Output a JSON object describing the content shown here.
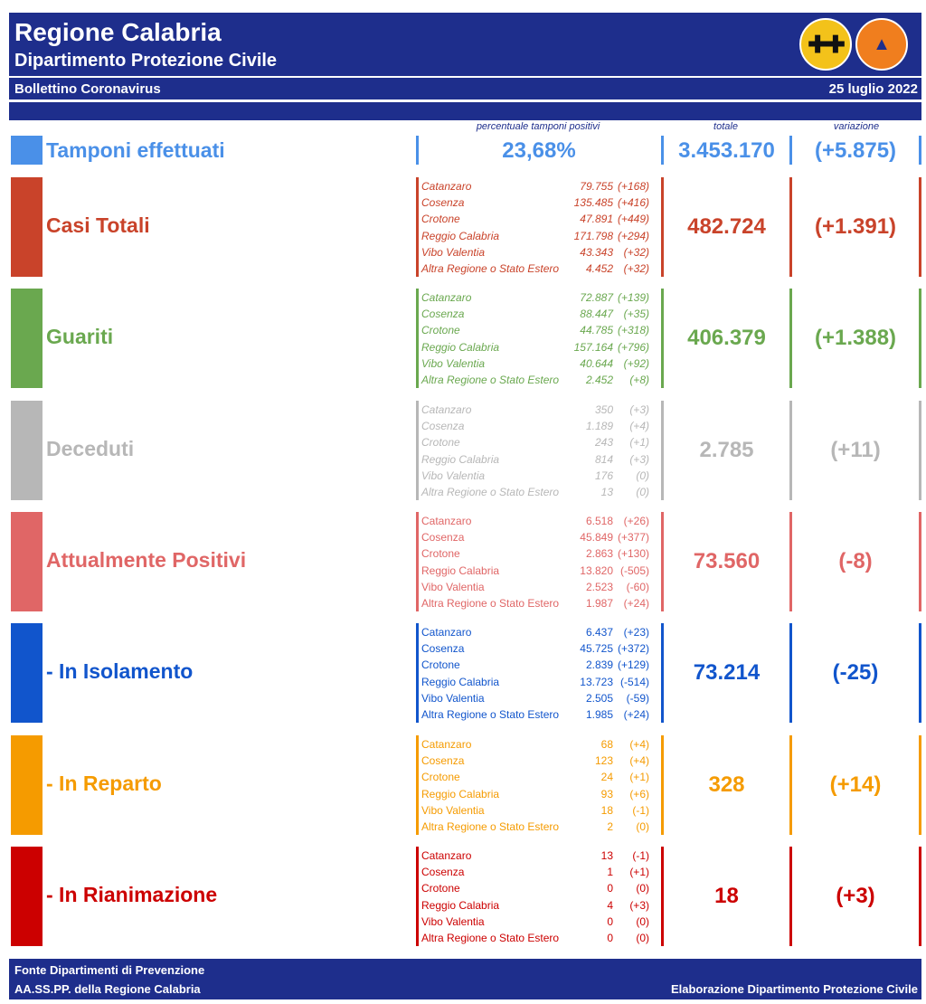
{
  "header": {
    "title": "Regione Calabria",
    "subtitle": "Dipartimento Protezione Civile",
    "bulletin": "Bollettino Coronavirus",
    "date": "25 luglio 2022",
    "logo_left": "regional-coat-of-arms",
    "logo_right": "protezione-civile-logo"
  },
  "columns": {
    "percent_label": "percentuale tamponi positivi",
    "total_label": "totale",
    "variation_label": "variazione"
  },
  "tamponi": {
    "label": "Tamponi effettuati",
    "percent": "23,68%",
    "total": "3.453.170",
    "variation": "(+5.875)",
    "color": "#4a90e8"
  },
  "sections": [
    {
      "label": "Casi Totali",
      "color": "#c9432a",
      "italic": true,
      "total": "482.724",
      "variation": "(+1.391)",
      "provinces": [
        {
          "name": "Catanzaro",
          "value": "79.755",
          "delta": "(+168)"
        },
        {
          "name": "Cosenza",
          "value": "135.485",
          "delta": "(+416)"
        },
        {
          "name": "Crotone",
          "value": "47.891",
          "delta": "(+449)"
        },
        {
          "name": "Reggio Calabria",
          "value": "171.798",
          "delta": "(+294)"
        },
        {
          "name": "Vibo Valentia",
          "value": "43.343",
          "delta": "(+32)"
        },
        {
          "name": "Altra Regione o Stato Estero",
          "value": "4.452",
          "delta": "(+32)"
        }
      ]
    },
    {
      "label": "Guariti",
      "color": "#6aa84f",
      "italic": true,
      "total": "406.379",
      "variation": "(+1.388)",
      "provinces": [
        {
          "name": "Catanzaro",
          "value": "72.887",
          "delta": "(+139)"
        },
        {
          "name": "Cosenza",
          "value": "88.447",
          "delta": "(+35)"
        },
        {
          "name": "Crotone",
          "value": "44.785",
          "delta": "(+318)"
        },
        {
          "name": "Reggio Calabria",
          "value": "157.164",
          "delta": "(+796)"
        },
        {
          "name": "Vibo Valentia",
          "value": "40.644",
          "delta": "(+92)"
        },
        {
          "name": "Altra Regione o Stato Estero",
          "value": "2.452",
          "delta": "(+8)"
        }
      ]
    },
    {
      "label": "Deceduti",
      "color": "#b7b7b7",
      "italic": true,
      "total": "2.785",
      "variation": "(+11)",
      "provinces": [
        {
          "name": "Catanzaro",
          "value": "350",
          "delta": "(+3)"
        },
        {
          "name": "Cosenza",
          "value": "1.189",
          "delta": "(+4)"
        },
        {
          "name": "Crotone",
          "value": "243",
          "delta": "(+1)"
        },
        {
          "name": "Reggio Calabria",
          "value": "814",
          "delta": "(+3)"
        },
        {
          "name": "Vibo Valentia",
          "value": "176",
          "delta": "(0)"
        },
        {
          "name": "Altra Regione o Stato Estero",
          "value": "13",
          "delta": "(0)"
        }
      ]
    },
    {
      "label": "Attualmente Positivi",
      "color": "#e06666",
      "italic": false,
      "total": "73.560",
      "variation": "(-8)",
      "provinces": [
        {
          "name": "Catanzaro",
          "value": "6.518",
          "delta": "(+26)"
        },
        {
          "name": "Cosenza",
          "value": "45.849",
          "delta": "(+377)"
        },
        {
          "name": "Crotone",
          "value": "2.863",
          "delta": "(+130)"
        },
        {
          "name": "Reggio Calabria",
          "value": "13.820",
          "delta": "(-505)"
        },
        {
          "name": "Vibo Valentia",
          "value": "2.523",
          "delta": "(-60)"
        },
        {
          "name": "Altra Regione o Stato Estero",
          "value": "1.987",
          "delta": "(+24)"
        }
      ]
    },
    {
      "label": " - In Isolamento",
      "color": "#1155cc",
      "italic": false,
      "total": "73.214",
      "variation": "(-25)",
      "provinces": [
        {
          "name": "Catanzaro",
          "value": "6.437",
          "delta": "(+23)"
        },
        {
          "name": "Cosenza",
          "value": "45.725",
          "delta": "(+372)"
        },
        {
          "name": "Crotone",
          "value": "2.839",
          "delta": "(+129)"
        },
        {
          "name": "Reggio Calabria",
          "value": "13.723",
          "delta": "(-514)"
        },
        {
          "name": "Vibo Valentia",
          "value": "2.505",
          "delta": "(-59)"
        },
        {
          "name": "Altra Regione o Stato Estero",
          "value": "1.985",
          "delta": "(+24)"
        }
      ]
    },
    {
      "label": " - In Reparto",
      "color": "#f59b00",
      "italic": false,
      "total": "328",
      "variation": "(+14)",
      "provinces": [
        {
          "name": "Catanzaro",
          "value": "68",
          "delta": "(+4)"
        },
        {
          "name": "Cosenza",
          "value": "123",
          "delta": "(+4)"
        },
        {
          "name": "Crotone",
          "value": "24",
          "delta": "(+1)"
        },
        {
          "name": "Reggio Calabria",
          "value": "93",
          "delta": "(+6)"
        },
        {
          "name": "Vibo Valentia",
          "value": "18",
          "delta": "(-1)"
        },
        {
          "name": "Altra Regione o Stato Estero",
          "value": "2",
          "delta": "(0)"
        }
      ]
    },
    {
      "label": " - In Rianimazione",
      "color": "#cc0000",
      "italic": false,
      "total": "18",
      "variation": "(+3)",
      "provinces": [
        {
          "name": "Catanzaro",
          "value": "13",
          "delta": "(-1)"
        },
        {
          "name": "Cosenza",
          "value": "1",
          "delta": "(+1)"
        },
        {
          "name": "Crotone",
          "value": "0",
          "delta": "(0)"
        },
        {
          "name": "Reggio Calabria",
          "value": "4",
          "delta": "(+3)"
        },
        {
          "name": "Vibo Valentia",
          "value": "0",
          "delta": "(0)"
        },
        {
          "name": "Altra Regione o Stato Estero",
          "value": "0",
          "delta": "(0)"
        }
      ]
    }
  ],
  "footer": {
    "source_line1": "Fonte Dipartimenti di Prevenzione",
    "source_line2": "AA.SS.PP.  della Regione Calabria",
    "credit": "Elaborazione Dipartimento Protezione Civile"
  }
}
